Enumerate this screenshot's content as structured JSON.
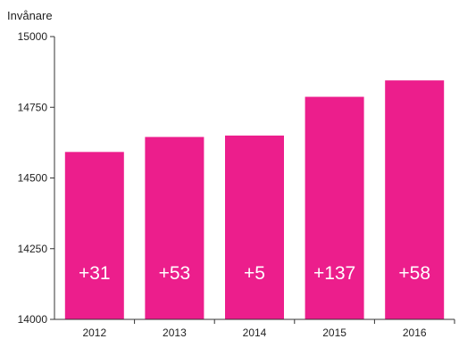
{
  "chart_data": {
    "type": "bar",
    "ylabel": "Invånare",
    "categories": [
      "2012",
      "2013",
      "2014",
      "2015",
      "2016"
    ],
    "values": [
      14592,
      14645,
      14650,
      14787,
      14845
    ],
    "bar_labels": [
      "+31",
      "+53",
      "+5",
      "+137",
      "+58"
    ],
    "ylim": [
      14000,
      15000
    ],
    "yticks": [
      14000,
      14250,
      14500,
      14750,
      15000
    ],
    "grid": false,
    "bar_color": "#ec1e8c",
    "axis_color": "#333333"
  }
}
